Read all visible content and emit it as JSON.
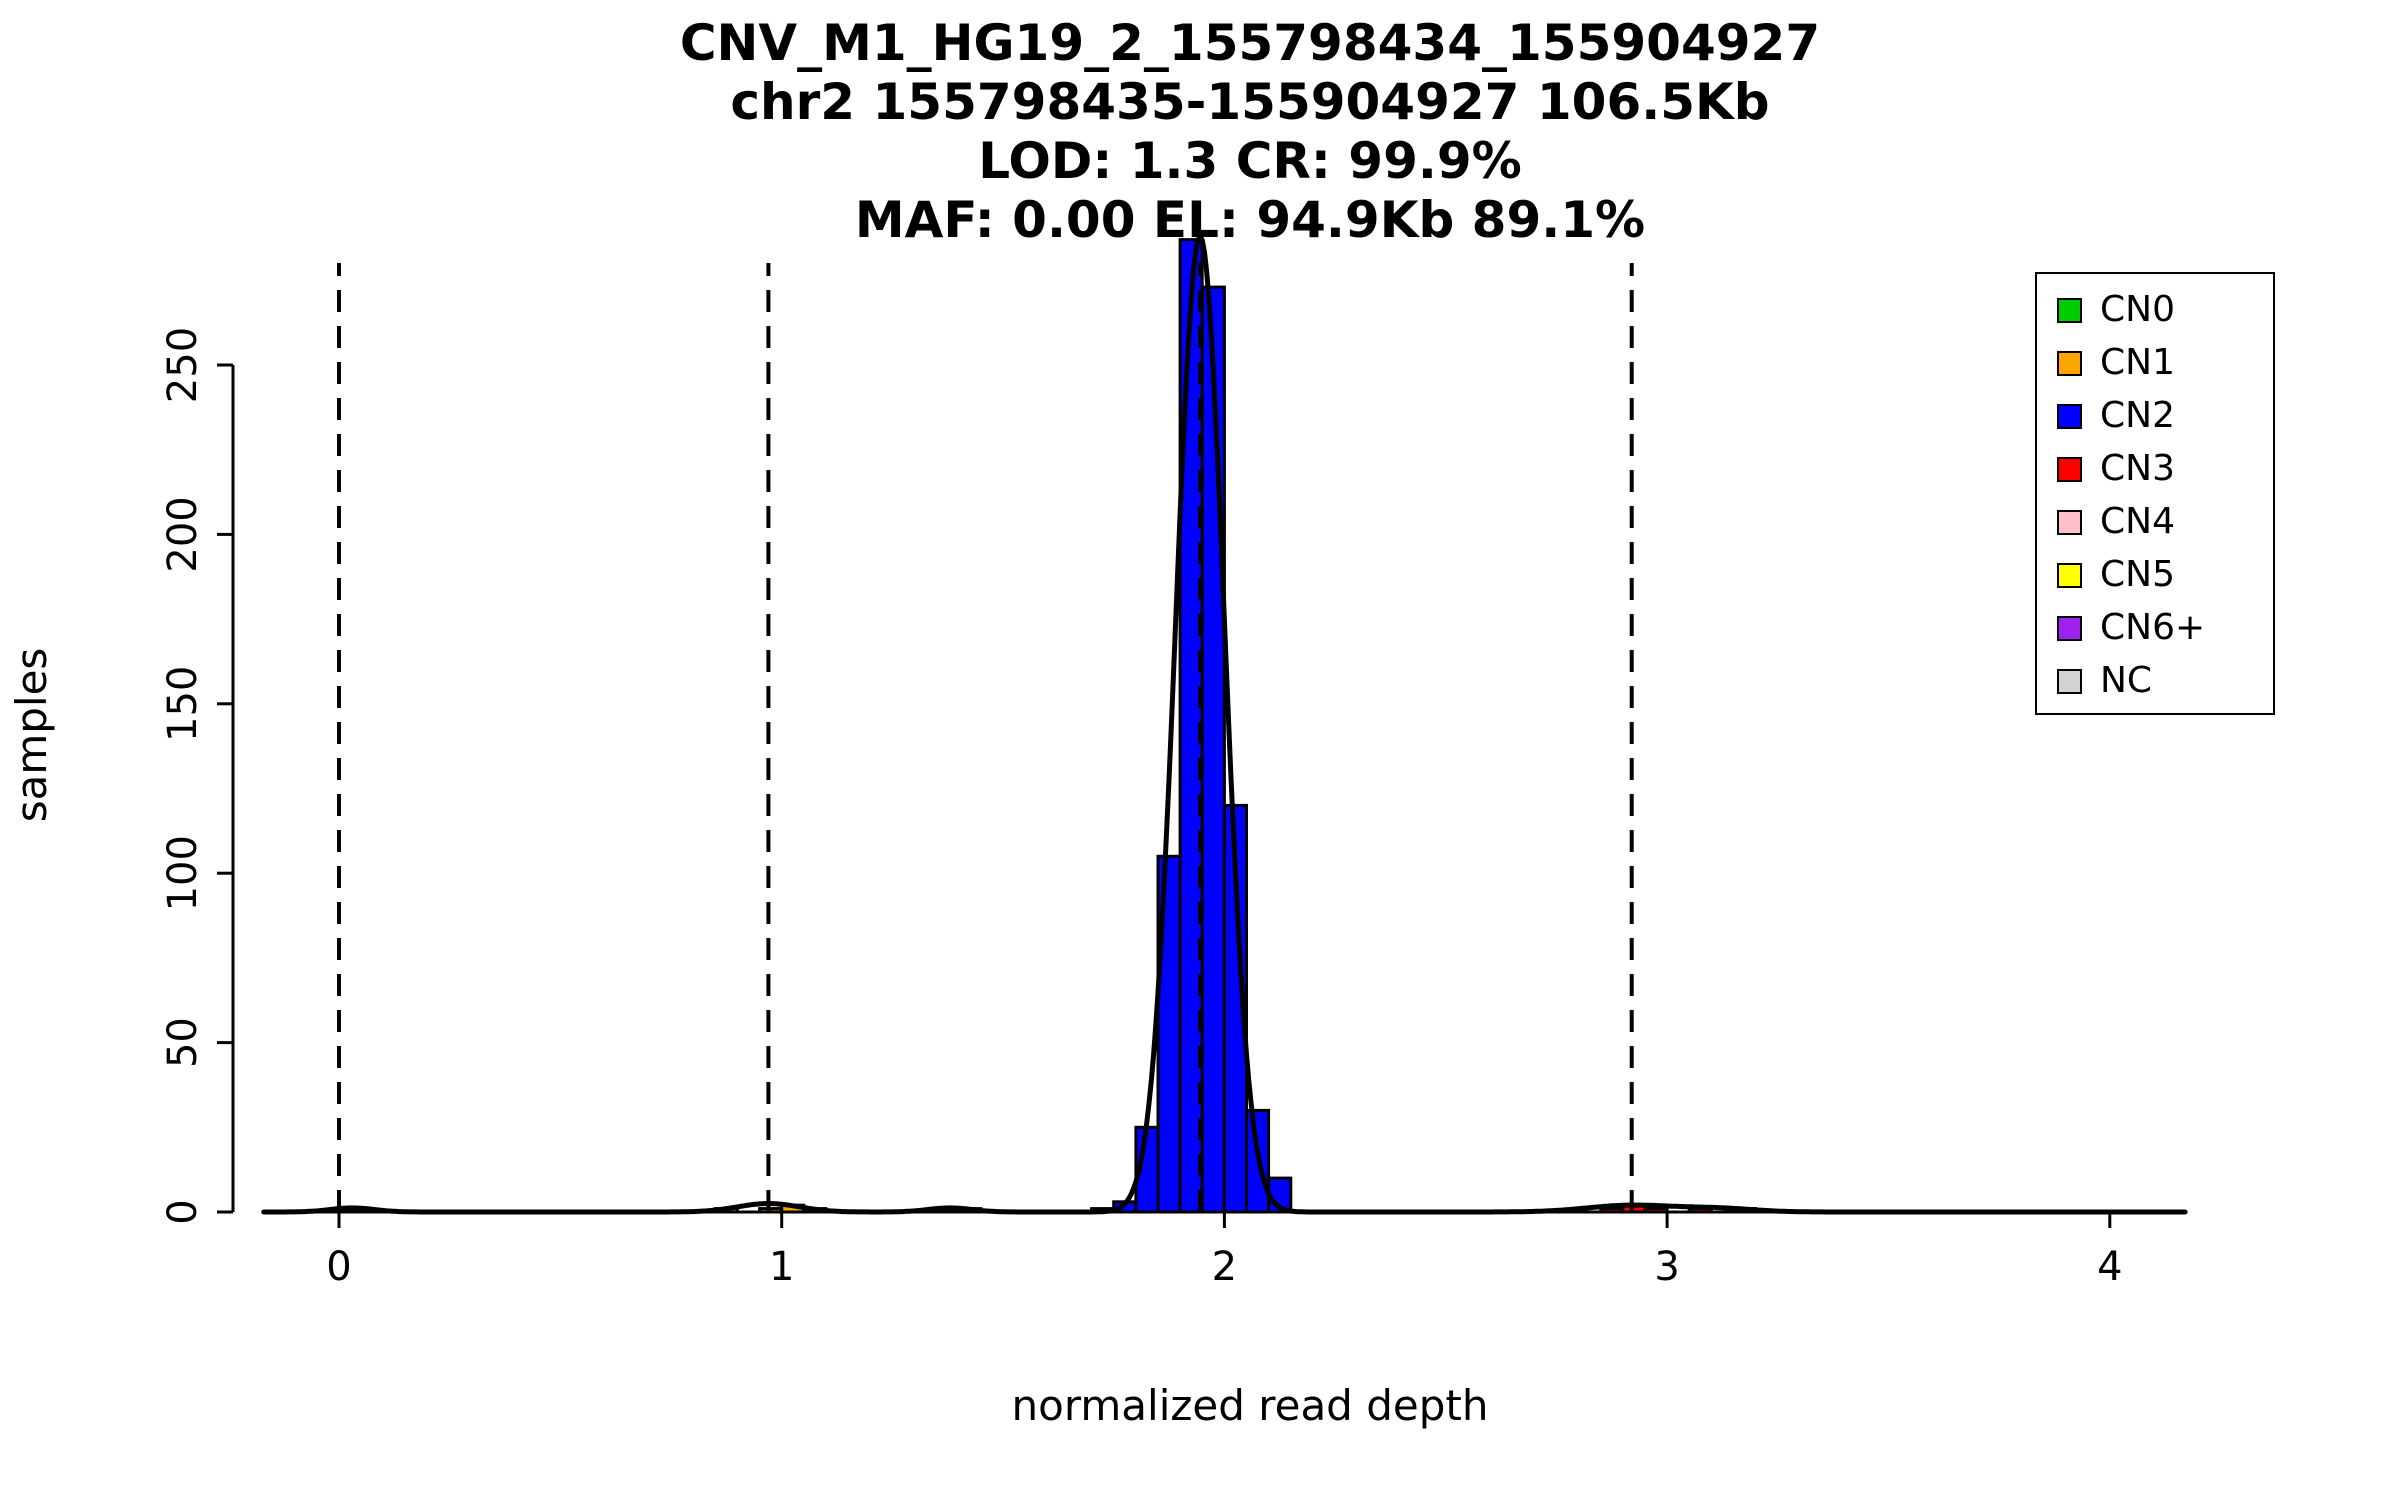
{
  "chart_data": {
    "type": "bar",
    "subtype": "histogram-with-density",
    "title_lines": [
      "CNV_M1_HG19_2_155798434_155904927",
      "chr2 155798435-155904927 106.5Kb",
      "LOD: 1.3 CR: 99.9%",
      "MAF: 0.00 EL: 94.9Kb 89.1%"
    ],
    "xlabel": "normalized read depth",
    "ylabel": "samples",
    "xlim": [
      -0.17,
      4.17
    ],
    "ylim": [
      0,
      292
    ],
    "x_ticks": [
      0,
      1,
      2,
      3,
      4
    ],
    "y_ticks": [
      0,
      50,
      100,
      150,
      200,
      250
    ],
    "grid": false,
    "legend_position": "top-right",
    "dashed_guide_lines_x": [
      0,
      0.97,
      1.945,
      2.92
    ],
    "bin_width": 0.05,
    "bars": [
      {
        "x": 0.0,
        "count": 1,
        "cn": "CN0"
      },
      {
        "x": 0.85,
        "count": 1,
        "cn": "CN1"
      },
      {
        "x": 0.95,
        "count": 1,
        "cn": "CN1"
      },
      {
        "x": 1.0,
        "count": 2,
        "cn": "CN1"
      },
      {
        "x": 1.05,
        "count": 1,
        "cn": "CN1"
      },
      {
        "x": 1.35,
        "count": 1,
        "cn": "NC"
      },
      {
        "x": 1.4,
        "count": 1,
        "cn": "NC"
      },
      {
        "x": 1.7,
        "count": 1,
        "cn": "CN2"
      },
      {
        "x": 1.75,
        "count": 3,
        "cn": "CN2"
      },
      {
        "x": 1.8,
        "count": 25,
        "cn": "CN2"
      },
      {
        "x": 1.85,
        "count": 105,
        "cn": "CN2"
      },
      {
        "x": 1.9,
        "count": 287,
        "cn": "CN2"
      },
      {
        "x": 1.95,
        "count": 273,
        "cn": "CN2"
      },
      {
        "x": 2.0,
        "count": 120,
        "cn": "CN2"
      },
      {
        "x": 2.05,
        "count": 30,
        "cn": "CN2"
      },
      {
        "x": 2.1,
        "count": 10,
        "cn": "CN2"
      },
      {
        "x": 2.85,
        "count": 1,
        "cn": "CN3"
      },
      {
        "x": 2.9,
        "count": 2,
        "cn": "CN3"
      },
      {
        "x": 2.95,
        "count": 1,
        "cn": "CN3"
      },
      {
        "x": 3.05,
        "count": 1,
        "cn": "CN3"
      },
      {
        "x": 3.15,
        "count": 1,
        "cn": "CN3"
      }
    ],
    "curve": {
      "color": "#000000",
      "components": [
        {
          "mu": 1.945,
          "sd": 0.055,
          "amp": 288
        },
        {
          "mu": 0.03,
          "sd": 0.05,
          "amp": 1.2
        },
        {
          "mu": 0.97,
          "sd": 0.07,
          "amp": 2.5
        },
        {
          "mu": 1.38,
          "sd": 0.05,
          "amp": 1.2
        },
        {
          "mu": 2.92,
          "sd": 0.1,
          "amp": 2.0
        },
        {
          "mu": 3.12,
          "sd": 0.08,
          "amp": 1.0
        }
      ]
    },
    "legend": {
      "entries": [
        {
          "label": "CN0",
          "color": "#00CD00"
        },
        {
          "label": "CN1",
          "color": "#FFA500"
        },
        {
          "label": "CN2",
          "color": "#0000FF"
        },
        {
          "label": "CN3",
          "color": "#FF0000"
        },
        {
          "label": "CN4",
          "color": "#FFC0CB"
        },
        {
          "label": "CN5",
          "color": "#FFFF00"
        },
        {
          "label": "CN6+",
          "color": "#A020F0"
        },
        {
          "label": "NC",
          "color": "#D3D3D3"
        }
      ]
    },
    "colors": {
      "CN0": "#00CD00",
      "CN1": "#FFA500",
      "CN2": "#0000FF",
      "CN3": "#FF0000",
      "CN4": "#FFC0CB",
      "CN5": "#FFFF00",
      "CN6+": "#A020F0",
      "NC": "#D3D3D3",
      "axis": "#000000",
      "bar_outline": "#000000",
      "guide_line": "#000000",
      "background": "#FFFFFF"
    }
  }
}
